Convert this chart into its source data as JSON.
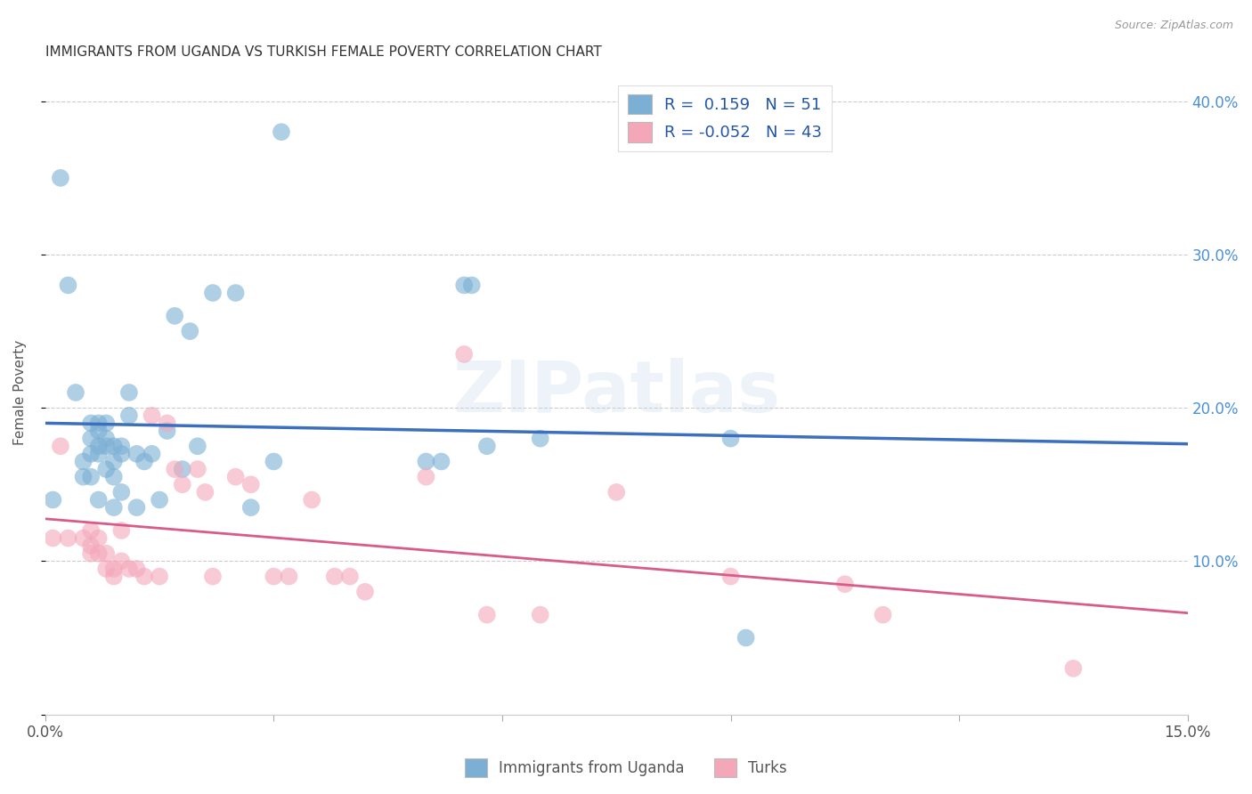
{
  "title": "IMMIGRANTS FROM UGANDA VS TURKISH FEMALE POVERTY CORRELATION CHART",
  "source": "Source: ZipAtlas.com",
  "xlabel": "",
  "ylabel": "Female Poverty",
  "xlim": [
    0.0,
    0.15
  ],
  "ylim": [
    0.0,
    0.42
  ],
  "xtick_positions": [
    0.0,
    0.03,
    0.06,
    0.09,
    0.12,
    0.15
  ],
  "xtick_labels": [
    "0.0%",
    "",
    "",
    "",
    "",
    "15.0%"
  ],
  "ytick_positions": [
    0.0,
    0.1,
    0.2,
    0.3,
    0.4
  ],
  "ytick_labels_right": [
    "",
    "10.0%",
    "20.0%",
    "30.0%",
    "40.0%"
  ],
  "legend_R1": "0.159",
  "legend_N1": "51",
  "legend_R2": "-0.052",
  "legend_N2": "43",
  "color_uganda": "#7bafd4",
  "color_turks": "#f4a7b9",
  "color_line_uganda": "#3c6fbe",
  "color_line_turks": "#d85c8a",
  "color_line_dashed": "#8ab0d8",
  "watermark": "ZIPatlas",
  "uganda_x": [
    0.001,
    0.002,
    0.003,
    0.004,
    0.005,
    0.005,
    0.006,
    0.006,
    0.006,
    0.006,
    0.007,
    0.007,
    0.007,
    0.007,
    0.007,
    0.008,
    0.008,
    0.008,
    0.008,
    0.009,
    0.009,
    0.009,
    0.009,
    0.01,
    0.01,
    0.01,
    0.011,
    0.011,
    0.012,
    0.012,
    0.013,
    0.014,
    0.015,
    0.016,
    0.017,
    0.018,
    0.019,
    0.02,
    0.022,
    0.025,
    0.027,
    0.03,
    0.031,
    0.05,
    0.052,
    0.055,
    0.056,
    0.058,
    0.065,
    0.09,
    0.092
  ],
  "uganda_y": [
    0.14,
    0.35,
    0.28,
    0.21,
    0.165,
    0.155,
    0.19,
    0.18,
    0.17,
    0.155,
    0.19,
    0.185,
    0.175,
    0.17,
    0.14,
    0.19,
    0.18,
    0.175,
    0.16,
    0.175,
    0.165,
    0.155,
    0.135,
    0.175,
    0.17,
    0.145,
    0.21,
    0.195,
    0.17,
    0.135,
    0.165,
    0.17,
    0.14,
    0.185,
    0.26,
    0.16,
    0.25,
    0.175,
    0.275,
    0.275,
    0.135,
    0.165,
    0.38,
    0.165,
    0.165,
    0.28,
    0.28,
    0.175,
    0.18,
    0.18,
    0.05
  ],
  "turks_x": [
    0.001,
    0.002,
    0.003,
    0.005,
    0.006,
    0.006,
    0.006,
    0.007,
    0.007,
    0.008,
    0.008,
    0.009,
    0.009,
    0.01,
    0.01,
    0.011,
    0.012,
    0.013,
    0.014,
    0.015,
    0.016,
    0.017,
    0.018,
    0.02,
    0.021,
    0.022,
    0.025,
    0.027,
    0.03,
    0.032,
    0.035,
    0.038,
    0.04,
    0.042,
    0.05,
    0.055,
    0.058,
    0.065,
    0.075,
    0.09,
    0.105,
    0.11,
    0.135
  ],
  "turks_y": [
    0.115,
    0.175,
    0.115,
    0.115,
    0.12,
    0.11,
    0.105,
    0.115,
    0.105,
    0.105,
    0.095,
    0.095,
    0.09,
    0.12,
    0.1,
    0.095,
    0.095,
    0.09,
    0.195,
    0.09,
    0.19,
    0.16,
    0.15,
    0.16,
    0.145,
    0.09,
    0.155,
    0.15,
    0.09,
    0.09,
    0.14,
    0.09,
    0.09,
    0.08,
    0.155,
    0.235,
    0.065,
    0.065,
    0.145,
    0.09,
    0.085,
    0.065,
    0.03
  ]
}
